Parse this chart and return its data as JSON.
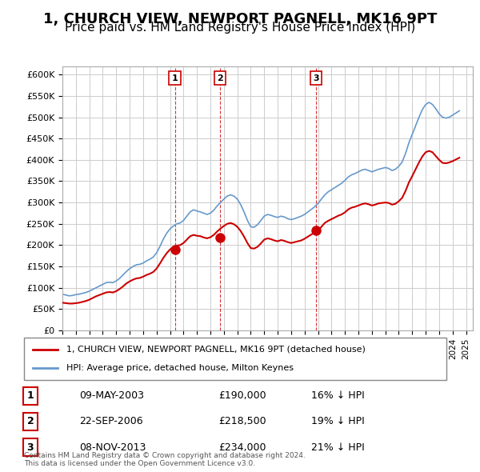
{
  "title": "1, CHURCH VIEW, NEWPORT PAGNELL, MK16 9PT",
  "subtitle": "Price paid vs. HM Land Registry's House Price Index (HPI)",
  "title_fontsize": 13,
  "subtitle_fontsize": 11,
  "ylabel_ticks": [
    "£0",
    "£50K",
    "£100K",
    "£150K",
    "£200K",
    "£250K",
    "£300K",
    "£350K",
    "£400K",
    "£450K",
    "£500K",
    "£550K",
    "£600K"
  ],
  "ytick_values": [
    0,
    50000,
    100000,
    150000,
    200000,
    250000,
    300000,
    350000,
    400000,
    450000,
    500000,
    550000,
    600000
  ],
  "ylim": [
    0,
    620000
  ],
  "xlim_start": 1995.0,
  "xlim_end": 2025.5,
  "sale_color": "#cc0000",
  "hpi_color": "#6699cc",
  "sale_marker_color": "#cc0000",
  "sale_marker_fill": "#cc0000",
  "background_color": "#ffffff",
  "grid_color": "#cccccc",
  "transactions": [
    {
      "num": 1,
      "date_label": "09-MAY-2003",
      "date_x": 2003.36,
      "price": 190000,
      "pct": "16%",
      "dir": "↓"
    },
    {
      "num": 2,
      "date_label": "22-SEP-2006",
      "date_x": 2006.72,
      "price": 218500,
      "pct": "19%",
      "dir": "↓"
    },
    {
      "num": 3,
      "date_label": "08-NOV-2013",
      "date_x": 2013.85,
      "price": 234000,
      "pct": "21%",
      "dir": "↓"
    }
  ],
  "legend_label_red": "1, CHURCH VIEW, NEWPORT PAGNELL, MK16 9PT (detached house)",
  "legend_label_blue": "HPI: Average price, detached house, Milton Keynes",
  "footer": "Contains HM Land Registry data © Crown copyright and database right 2024.\nThis data is licensed under the Open Government Licence v3.0.",
  "hpi_data": {
    "years": [
      1995.0,
      1995.25,
      1995.5,
      1995.75,
      1996.0,
      1996.25,
      1996.5,
      1996.75,
      1997.0,
      1997.25,
      1997.5,
      1997.75,
      1998.0,
      1998.25,
      1998.5,
      1998.75,
      1999.0,
      1999.25,
      1999.5,
      1999.75,
      2000.0,
      2000.25,
      2000.5,
      2000.75,
      2001.0,
      2001.25,
      2001.5,
      2001.75,
      2002.0,
      2002.25,
      2002.5,
      2002.75,
      2003.0,
      2003.25,
      2003.5,
      2003.75,
      2004.0,
      2004.25,
      2004.5,
      2004.75,
      2005.0,
      2005.25,
      2005.5,
      2005.75,
      2006.0,
      2006.25,
      2006.5,
      2006.75,
      2007.0,
      2007.25,
      2007.5,
      2007.75,
      2008.0,
      2008.25,
      2008.5,
      2008.75,
      2009.0,
      2009.25,
      2009.5,
      2009.75,
      2010.0,
      2010.25,
      2010.5,
      2010.75,
      2011.0,
      2011.25,
      2011.5,
      2011.75,
      2012.0,
      2012.25,
      2012.5,
      2012.75,
      2013.0,
      2013.25,
      2013.5,
      2013.75,
      2014.0,
      2014.25,
      2014.5,
      2014.75,
      2015.0,
      2015.25,
      2015.5,
      2015.75,
      2016.0,
      2016.25,
      2016.5,
      2016.75,
      2017.0,
      2017.25,
      2017.5,
      2017.75,
      2018.0,
      2018.25,
      2018.5,
      2018.75,
      2019.0,
      2019.25,
      2019.5,
      2019.75,
      2020.0,
      2020.25,
      2020.5,
      2020.75,
      2021.0,
      2021.25,
      2021.5,
      2021.75,
      2022.0,
      2022.25,
      2022.5,
      2022.75,
      2023.0,
      2023.25,
      2023.5,
      2023.75,
      2024.0,
      2024.25,
      2024.5
    ],
    "values": [
      85000,
      83000,
      81000,
      82000,
      84000,
      85000,
      87000,
      89000,
      92000,
      96000,
      100000,
      104000,
      108000,
      112000,
      113000,
      112000,
      116000,
      122000,
      130000,
      138000,
      145000,
      150000,
      154000,
      155000,
      158000,
      163000,
      167000,
      172000,
      182000,
      197000,
      214000,
      228000,
      238000,
      245000,
      250000,
      252000,
      258000,
      268000,
      278000,
      283000,
      280000,
      278000,
      275000,
      272000,
      275000,
      282000,
      292000,
      300000,
      308000,
      315000,
      318000,
      315000,
      308000,
      295000,
      278000,
      258000,
      243000,
      242000,
      248000,
      258000,
      268000,
      272000,
      270000,
      267000,
      265000,
      268000,
      266000,
      262000,
      260000,
      262000,
      265000,
      268000,
      272000,
      278000,
      284000,
      290000,
      298000,
      308000,
      318000,
      325000,
      330000,
      335000,
      340000,
      345000,
      352000,
      360000,
      365000,
      368000,
      372000,
      376000,
      378000,
      375000,
      372000,
      375000,
      378000,
      380000,
      382000,
      380000,
      375000,
      378000,
      385000,
      395000,
      415000,
      440000,
      460000,
      480000,
      500000,
      518000,
      530000,
      535000,
      530000,
      520000,
      508000,
      500000,
      498000,
      500000,
      505000,
      510000,
      515000
    ]
  },
  "sale_data": {
    "years": [
      1995.0,
      1995.25,
      1995.5,
      1995.75,
      1996.0,
      1996.25,
      1996.5,
      1996.75,
      1997.0,
      1997.25,
      1997.5,
      1997.75,
      1998.0,
      1998.25,
      1998.5,
      1998.75,
      1999.0,
      1999.25,
      1999.5,
      1999.75,
      2000.0,
      2000.25,
      2000.5,
      2000.75,
      2001.0,
      2001.25,
      2001.5,
      2001.75,
      2002.0,
      2002.25,
      2002.5,
      2002.75,
      2003.0,
      2003.25,
      2003.5,
      2003.75,
      2004.0,
      2004.25,
      2004.5,
      2004.75,
      2005.0,
      2005.25,
      2005.5,
      2005.75,
      2006.0,
      2006.25,
      2006.5,
      2006.75,
      2007.0,
      2007.25,
      2007.5,
      2007.75,
      2008.0,
      2008.25,
      2008.5,
      2008.75,
      2009.0,
      2009.25,
      2009.5,
      2009.75,
      2010.0,
      2010.25,
      2010.5,
      2010.75,
      2011.0,
      2011.25,
      2011.5,
      2011.75,
      2012.0,
      2012.25,
      2012.5,
      2012.75,
      2013.0,
      2013.25,
      2013.5,
      2013.75,
      2014.0,
      2014.25,
      2014.5,
      2014.75,
      2015.0,
      2015.25,
      2015.5,
      2015.75,
      2016.0,
      2016.25,
      2016.5,
      2016.75,
      2017.0,
      2017.25,
      2017.5,
      2017.75,
      2018.0,
      2018.25,
      2018.5,
      2018.75,
      2019.0,
      2019.25,
      2019.5,
      2019.75,
      2020.0,
      2020.25,
      2020.5,
      2020.75,
      2021.0,
      2021.25,
      2021.5,
      2021.75,
      2022.0,
      2022.25,
      2022.5,
      2022.75,
      2023.0,
      2023.25,
      2023.5,
      2023.75,
      2024.0,
      2024.25,
      2024.5
    ],
    "values": [
      65000,
      64000,
      63000,
      63000,
      64000,
      65000,
      67000,
      69000,
      72000,
      76000,
      80000,
      83000,
      86000,
      89000,
      90000,
      89000,
      92000,
      97000,
      103000,
      110000,
      115000,
      119000,
      122000,
      123000,
      126000,
      130000,
      133000,
      137000,
      145000,
      157000,
      170000,
      181000,
      190000,
      195000,
      199000,
      200000,
      205000,
      213000,
      221000,
      224000,
      222000,
      221000,
      218000,
      216000,
      218500,
      224000,
      232000,
      239000,
      245000,
      250000,
      252000,
      249000,
      243000,
      233000,
      220000,
      205000,
      193000,
      192000,
      196000,
      204000,
      213000,
      216000,
      214000,
      211000,
      209000,
      212000,
      210000,
      207000,
      205000,
      207000,
      209000,
      211000,
      215000,
      220000,
      225000,
      229000,
      234000,
      243000,
      252000,
      257000,
      261000,
      265000,
      269000,
      272000,
      277000,
      284000,
      288000,
      290000,
      293000,
      296000,
      298000,
      296000,
      293000,
      295000,
      298000,
      299000,
      300000,
      299000,
      295000,
      297000,
      303000,
      311000,
      327000,
      347000,
      362000,
      378000,
      394000,
      408000,
      418000,
      421000,
      418000,
      409000,
      400000,
      393000,
      392000,
      394000,
      397000,
      401000,
      405000
    ]
  }
}
